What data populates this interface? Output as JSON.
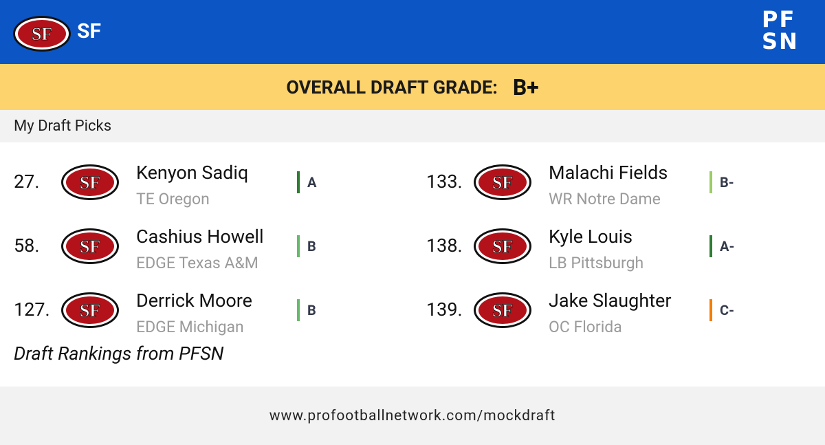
{
  "header": {
    "team": "SF",
    "brand": {
      "top": "PF",
      "bottom": "SN"
    }
  },
  "grade_banner": {
    "label": "OVERALL DRAFT GRADE:",
    "grade": "B+"
  },
  "section_title": "My Draft Picks",
  "picks": [
    {
      "number": "27.",
      "name": "Kenyon Sadiq",
      "detail": "TE Oregon",
      "grade": "A",
      "grade_color": "#2e7d32"
    },
    {
      "number": "58.",
      "name": "Cashius Howell",
      "detail": "EDGE Texas A&M",
      "grade": "B",
      "grade_color": "#66bb6a"
    },
    {
      "number": "127.",
      "name": "Derrick Moore",
      "detail": "EDGE Michigan",
      "grade": "B",
      "grade_color": "#66bb6a"
    },
    {
      "number": "133.",
      "name": "Malachi Fields",
      "detail": "WR Notre Dame",
      "grade": "B-",
      "grade_color": "#9ccc65"
    },
    {
      "number": "138.",
      "name": "Kyle Louis",
      "detail": "LB Pittsburgh",
      "grade": "A-",
      "grade_color": "#2e7d32"
    },
    {
      "number": "139.",
      "name": "Jake Slaughter",
      "detail": "OC Florida",
      "grade": "C-",
      "grade_color": "#f57c00"
    }
  ],
  "credit": "Draft Rankings from PFSN",
  "footer": {
    "url": "www.profootballnetwork.com/mockdraft"
  }
}
